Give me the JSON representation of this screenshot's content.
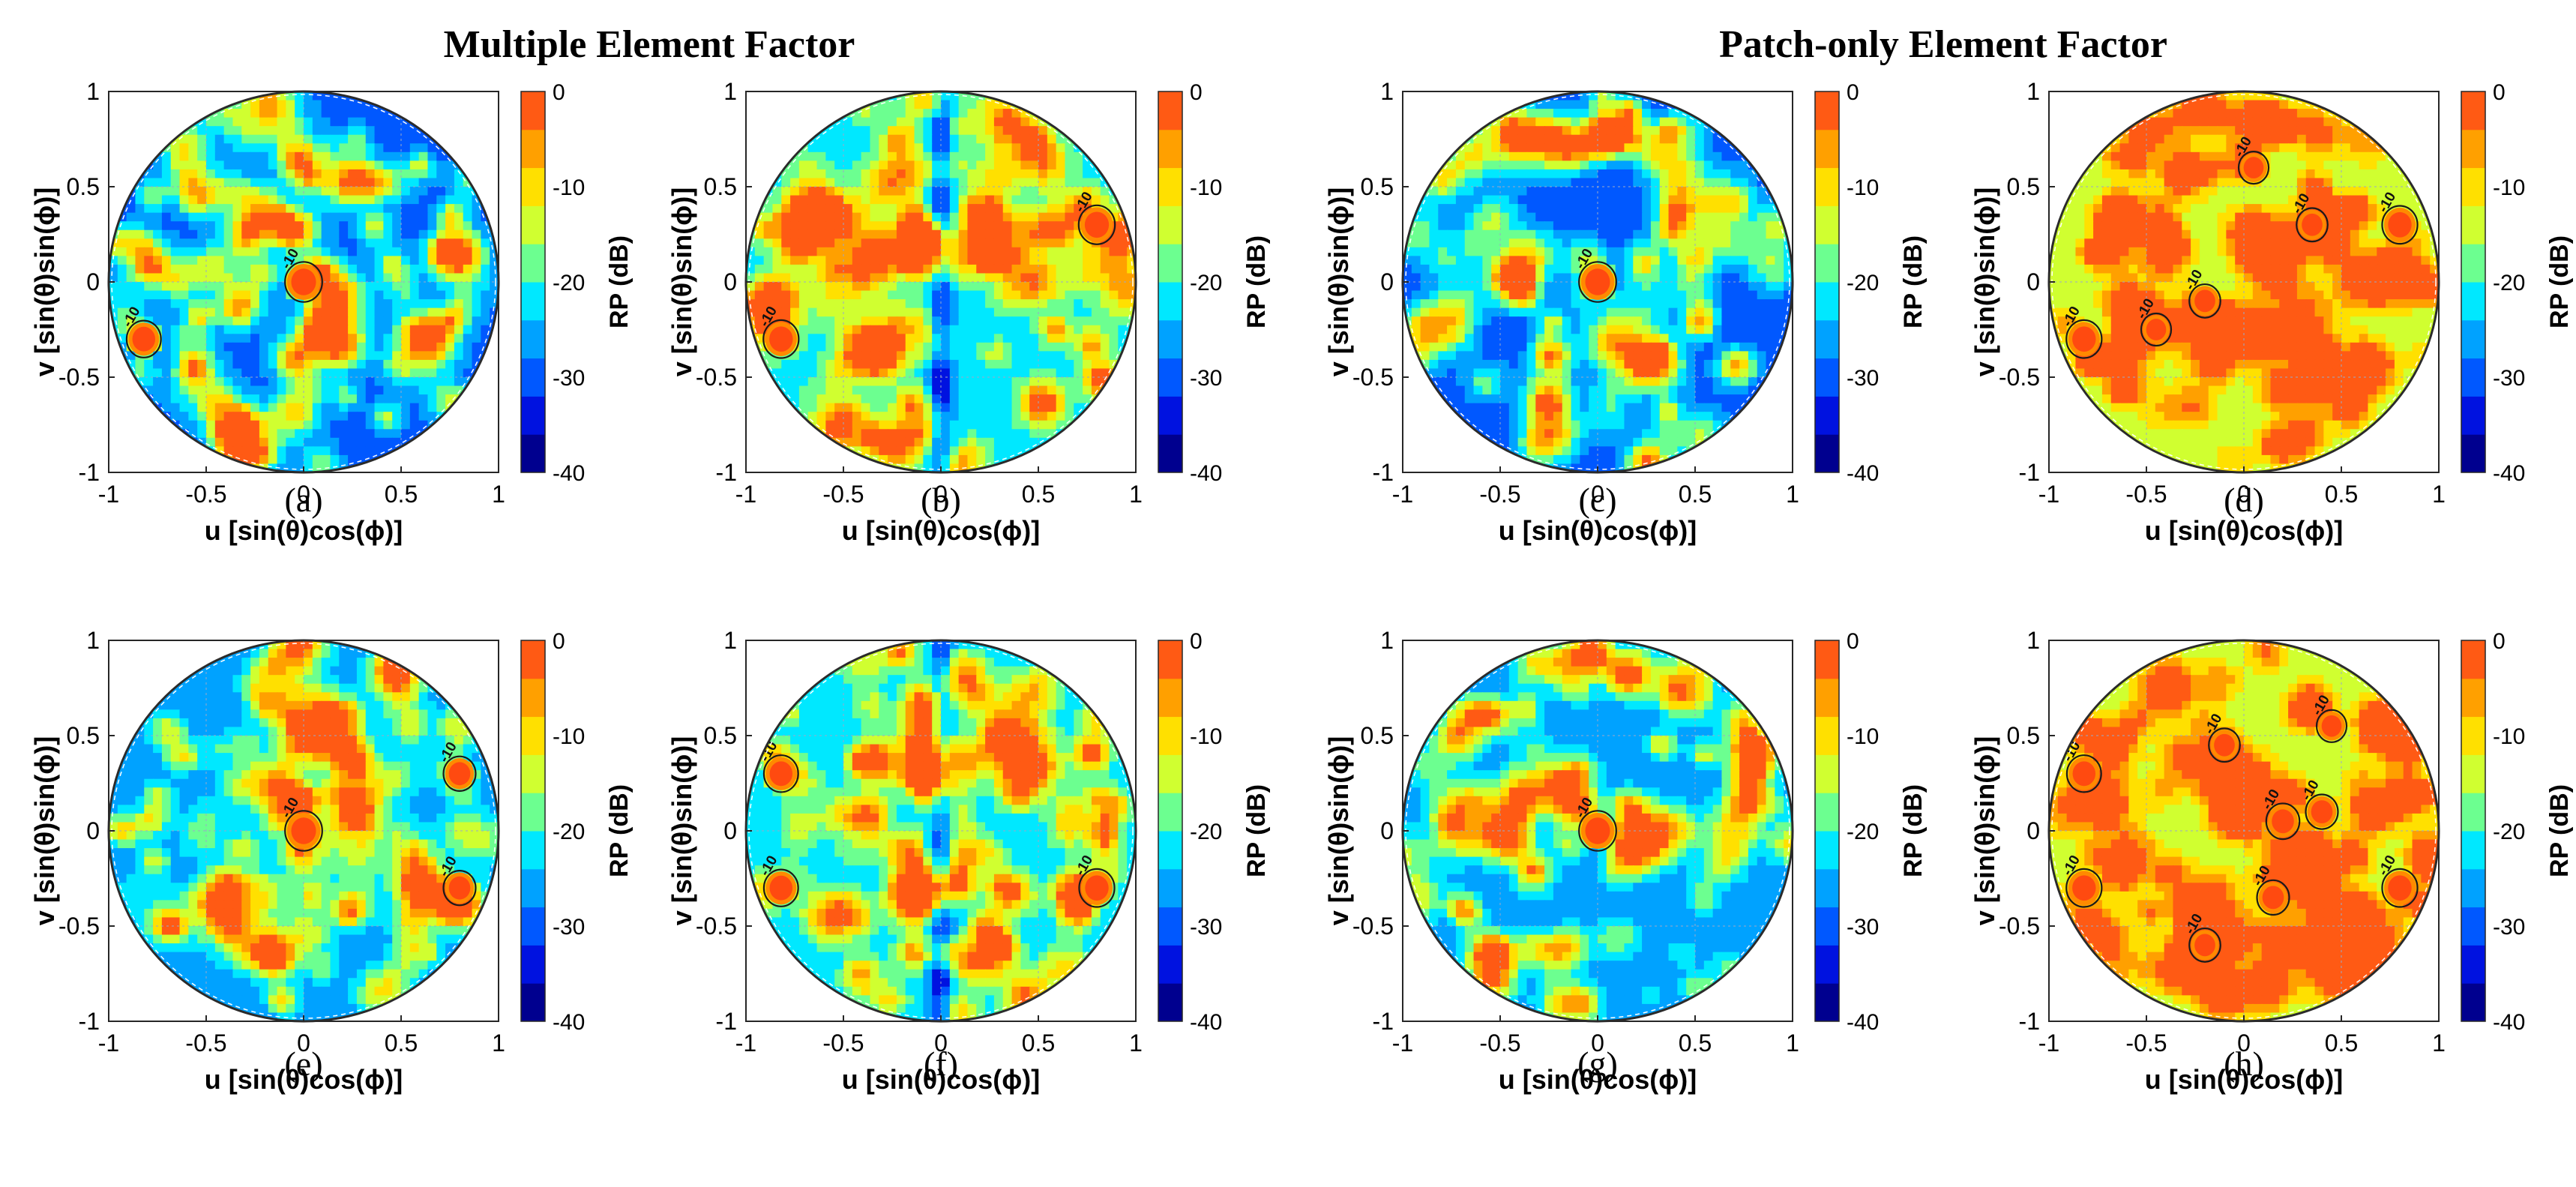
{
  "figure": {
    "group_titles": [
      "Multiple Element Factor",
      "Patch-only Element Factor"
    ]
  },
  "chart_data": [
    {
      "id": "a",
      "type": "heatmap",
      "panel_label": "(a)",
      "xlabel": "u [sin(θ)cos(ϕ)]",
      "ylabel": "v [sin(θ)sin(ϕ)]",
      "xlim": [
        -1,
        1
      ],
      "ylim": [
        -1,
        1
      ],
      "xticks": [
        "-1",
        "-0.5",
        "0",
        "0.5",
        "1"
      ],
      "yticks": [
        "-1",
        "-0.5",
        "0",
        "0.5",
        "1"
      ],
      "colorbar": {
        "label": "RP (dB)",
        "ticks": [
          "0",
          "-10",
          "-20",
          "-30",
          "-40"
        ],
        "range": [
          -40,
          0
        ]
      },
      "peaks": [
        {
          "u": 0,
          "v": 0,
          "level": 0
        },
        {
          "u": -0.82,
          "v": -0.3,
          "level": -3
        }
      ],
      "contour_level": -10,
      "contour_label": "-10",
      "background_level": -30,
      "split_band": false,
      "seed": 11
    },
    {
      "id": "b",
      "type": "heatmap",
      "panel_label": "(b)",
      "xlabel": "u [sin(θ)cos(ϕ)]",
      "ylabel": "v [sin(θ)sin(ϕ)]",
      "xlim": [
        -1,
        1
      ],
      "ylim": [
        -1,
        1
      ],
      "xticks": [
        "-1",
        "-0.5",
        "0",
        "0.5",
        "1"
      ],
      "yticks": [
        "-1",
        "-0.5",
        "0",
        "0.5",
        "1"
      ],
      "colorbar": {
        "label": "RP (dB)",
        "ticks": [
          "0",
          "-10",
          "-20",
          "-30",
          "-40"
        ],
        "range": [
          -40,
          0
        ]
      },
      "peaks": [
        {
          "u": -0.82,
          "v": -0.3,
          "level": -2
        },
        {
          "u": 0.8,
          "v": 0.3,
          "level": -1
        }
      ],
      "contour_level": -10,
      "contour_label": "-10",
      "background_level": -22,
      "split_band": true,
      "seed": 23
    },
    {
      "id": "c",
      "type": "heatmap",
      "panel_label": "(c)",
      "xlabel": "u [sin(θ)cos(ϕ)]",
      "ylabel": "v [sin(θ)sin(ϕ)]",
      "xlim": [
        -1,
        1
      ],
      "ylim": [
        -1,
        1
      ],
      "xticks": [
        "-1",
        "-0.5",
        "0",
        "0.5",
        "1"
      ],
      "yticks": [
        "-1",
        "-0.5",
        "0",
        "0.5",
        "1"
      ],
      "colorbar": {
        "label": "RP (dB)",
        "ticks": [
          "0",
          "-10",
          "-20",
          "-30",
          "-40"
        ],
        "range": [
          -40,
          0
        ]
      },
      "peaks": [
        {
          "u": 0,
          "v": 0,
          "level": 0
        }
      ],
      "contour_level": -10,
      "contour_label": "-10",
      "background_level": -31,
      "split_band": false,
      "seed": 37
    },
    {
      "id": "d",
      "type": "heatmap",
      "panel_label": "(d)",
      "xlabel": "u [sin(θ)cos(ϕ)]",
      "ylabel": "v [sin(θ)sin(ϕ)]",
      "xlim": [
        -1,
        1
      ],
      "ylim": [
        -1,
        1
      ],
      "xticks": [
        "-1",
        "-0.5",
        "0",
        "0.5",
        "1"
      ],
      "yticks": [
        "-1",
        "-0.5",
        "0",
        "0.5",
        "1"
      ],
      "colorbar": {
        "label": "RP (dB)",
        "ticks": [
          "0",
          "-10",
          "-20",
          "-30",
          "-40"
        ],
        "range": [
          -40,
          0
        ]
      },
      "peaks": [
        {
          "u": -0.82,
          "v": -0.3,
          "level": -2
        },
        {
          "u": 0.8,
          "v": 0.3,
          "level": -2
        },
        {
          "u": 0.35,
          "v": 0.3,
          "level": -6
        },
        {
          "u": -0.2,
          "v": -0.1,
          "level": -6
        },
        {
          "u": 0.05,
          "v": 0.6,
          "level": -7
        },
        {
          "u": -0.45,
          "v": -0.25,
          "level": -7
        }
      ],
      "contour_level": -10,
      "contour_label": "-10",
      "background_level": -16,
      "split_band": false,
      "seed": 53
    },
    {
      "id": "e",
      "type": "heatmap",
      "panel_label": "(e)",
      "xlabel": "u [sin(θ)cos(ϕ)]",
      "ylabel": "v [sin(θ)sin(ϕ)]",
      "xlim": [
        -1,
        1
      ],
      "ylim": [
        -1,
        1
      ],
      "xticks": [
        "-1",
        "-0.5",
        "0",
        "0.5",
        "1"
      ],
      "yticks": [
        "-1",
        "-0.5",
        "0",
        "0.5",
        "1"
      ],
      "colorbar": {
        "label": "RP (dB)",
        "ticks": [
          "0",
          "-10",
          "-20",
          "-30",
          "-40"
        ],
        "range": [
          -40,
          0
        ]
      },
      "peaks": [
        {
          "u": 0,
          "v": 0,
          "level": 0
        },
        {
          "u": 0.8,
          "v": 0.3,
          "level": -5
        },
        {
          "u": 0.8,
          "v": -0.3,
          "level": -5
        }
      ],
      "contour_level": -10,
      "contour_label": "-10",
      "background_level": -28,
      "split_band": false,
      "seed": 67
    },
    {
      "id": "f",
      "type": "heatmap",
      "panel_label": "(f)",
      "xlabel": "u [sin(θ)cos(ϕ)]",
      "ylabel": "v [sin(θ)sin(ϕ)]",
      "xlim": [
        -1,
        1
      ],
      "ylim": [
        -1,
        1
      ],
      "xticks": [
        "-1",
        "-0.5",
        "0",
        "0.5",
        "1"
      ],
      "yticks": [
        "-1",
        "-0.5",
        "0",
        "0.5",
        "1"
      ],
      "colorbar": {
        "label": "RP (dB)",
        "ticks": [
          "0",
          "-10",
          "-20",
          "-30",
          "-40"
        ],
        "range": [
          -40,
          0
        ]
      },
      "peaks": [
        {
          "u": -0.82,
          "v": 0.3,
          "level": -3
        },
        {
          "u": -0.82,
          "v": -0.3,
          "level": -3
        },
        {
          "u": 0.8,
          "v": -0.3,
          "level": -2
        }
      ],
      "contour_level": -10,
      "contour_label": "-10",
      "background_level": -24,
      "split_band": true,
      "seed": 79
    },
    {
      "id": "g",
      "type": "heatmap",
      "panel_label": "(g)",
      "xlabel": "u [sin(θ)cos(ϕ)]",
      "ylabel": "v [sin(θ)sin(ϕ)]",
      "xlim": [
        -1,
        1
      ],
      "ylim": [
        -1,
        1
      ],
      "xticks": [
        "-1",
        "-0.5",
        "0",
        "0.5",
        "1"
      ],
      "yticks": [
        "-1",
        "-0.5",
        "0",
        "0.5",
        "1"
      ],
      "colorbar": {
        "label": "RP (dB)",
        "ticks": [
          "0",
          "-10",
          "-20",
          "-30",
          "-40"
        ],
        "range": [
          -40,
          0
        ]
      },
      "peaks": [
        {
          "u": 0,
          "v": 0,
          "level": 0
        }
      ],
      "contour_level": -10,
      "contour_label": "-10",
      "background_level": -28,
      "split_band": false,
      "seed": 91
    },
    {
      "id": "h",
      "type": "heatmap",
      "panel_label": "(h)",
      "xlabel": "u [sin(θ)cos(ϕ)]",
      "ylabel": "v [sin(θ)sin(ϕ)]",
      "xlim": [
        -1,
        1
      ],
      "ylim": [
        -1,
        1
      ],
      "xticks": [
        "-1",
        "-0.5",
        "0",
        "0.5",
        "1"
      ],
      "yticks": [
        "-1",
        "-0.5",
        "0",
        "0.5",
        "1"
      ],
      "colorbar": {
        "label": "RP (dB)",
        "ticks": [
          "0",
          "-10",
          "-20",
          "-30",
          "-40"
        ],
        "range": [
          -40,
          0
        ]
      },
      "peaks": [
        {
          "u": -0.82,
          "v": 0.3,
          "level": -3
        },
        {
          "u": -0.82,
          "v": -0.3,
          "level": -2
        },
        {
          "u": 0.8,
          "v": -0.3,
          "level": -2
        },
        {
          "u": 0.2,
          "v": 0.05,
          "level": -4
        },
        {
          "u": 0.4,
          "v": 0.1,
          "level": -5
        },
        {
          "u": -0.1,
          "v": 0.45,
          "level": -6
        },
        {
          "u": 0.15,
          "v": -0.35,
          "level": -5
        },
        {
          "u": -0.2,
          "v": -0.6,
          "level": -6
        },
        {
          "u": 0.45,
          "v": 0.55,
          "level": -7
        }
      ],
      "contour_level": -10,
      "contour_label": "-10",
      "background_level": -15,
      "split_band": false,
      "seed": 103
    }
  ]
}
